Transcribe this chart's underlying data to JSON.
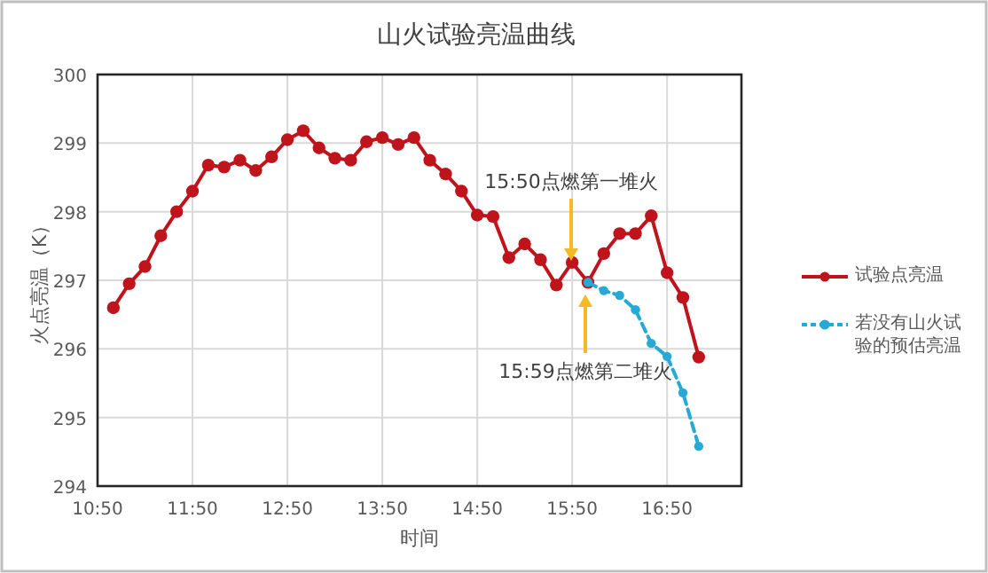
{
  "chart_data": {
    "type": "line",
    "title": "山火试验亮温曲线",
    "xlabel": "时间",
    "ylabel": "火点亮温（K）",
    "xlim": [
      10.8333,
      17.6167
    ],
    "ylim": [
      294,
      300
    ],
    "xticks": [
      {
        "value": 10.8333,
        "label": "10:50"
      },
      {
        "value": 11.8333,
        "label": "11:50"
      },
      {
        "value": 12.8333,
        "label": "12:50"
      },
      {
        "value": 13.8333,
        "label": "13:50"
      },
      {
        "value": 14.8333,
        "label": "14:50"
      },
      {
        "value": 15.8333,
        "label": "15:50"
      },
      {
        "value": 16.8333,
        "label": "16:50"
      }
    ],
    "yticks": [
      294,
      295,
      296,
      297,
      298,
      299,
      300
    ],
    "grid": true,
    "legend": "right",
    "marker": "circle",
    "annotations": [
      "15:50点燃第一堆火",
      "15:59点燃第二堆火"
    ],
    "series": [
      {
        "name": "试验点亮温",
        "color": "#c0141c",
        "line_style": "solid",
        "x": [
          11.0,
          11.1667,
          11.3333,
          11.5,
          11.6667,
          11.8333,
          12.0,
          12.1667,
          12.3333,
          12.5,
          12.6667,
          12.8333,
          13.0,
          13.1667,
          13.3333,
          13.5,
          13.6667,
          13.8333,
          14.0,
          14.1667,
          14.3333,
          14.5,
          14.6667,
          14.8333,
          15.0,
          15.1667,
          15.3333,
          15.5,
          15.6667,
          15.8333,
          16.0,
          16.1667,
          16.3333,
          16.5,
          16.6667,
          16.8333,
          17.0,
          17.1667
        ],
        "values": [
          296.6,
          296.95,
          297.2,
          297.65,
          298.0,
          298.3,
          298.68,
          298.65,
          298.75,
          298.6,
          298.8,
          299.05,
          299.18,
          298.93,
          298.78,
          298.75,
          299.02,
          299.08,
          298.98,
          299.08,
          298.75,
          298.55,
          298.3,
          297.95,
          297.93,
          297.33,
          297.53,
          297.3,
          296.93,
          297.26,
          296.97,
          297.39,
          297.68,
          297.68,
          297.94,
          297.11,
          296.75,
          295.88
        ]
      },
      {
        "name": "若没有山火试验的预估亮温",
        "color": "#27a9d6",
        "line_style": "dashed",
        "x": [
          16.0,
          16.1667,
          16.3333,
          16.5,
          16.6667,
          16.8333,
          17.0,
          17.1667
        ],
        "values": [
          296.97,
          296.85,
          296.78,
          296.57,
          296.08,
          295.89,
          295.36,
          294.58
        ]
      }
    ]
  }
}
